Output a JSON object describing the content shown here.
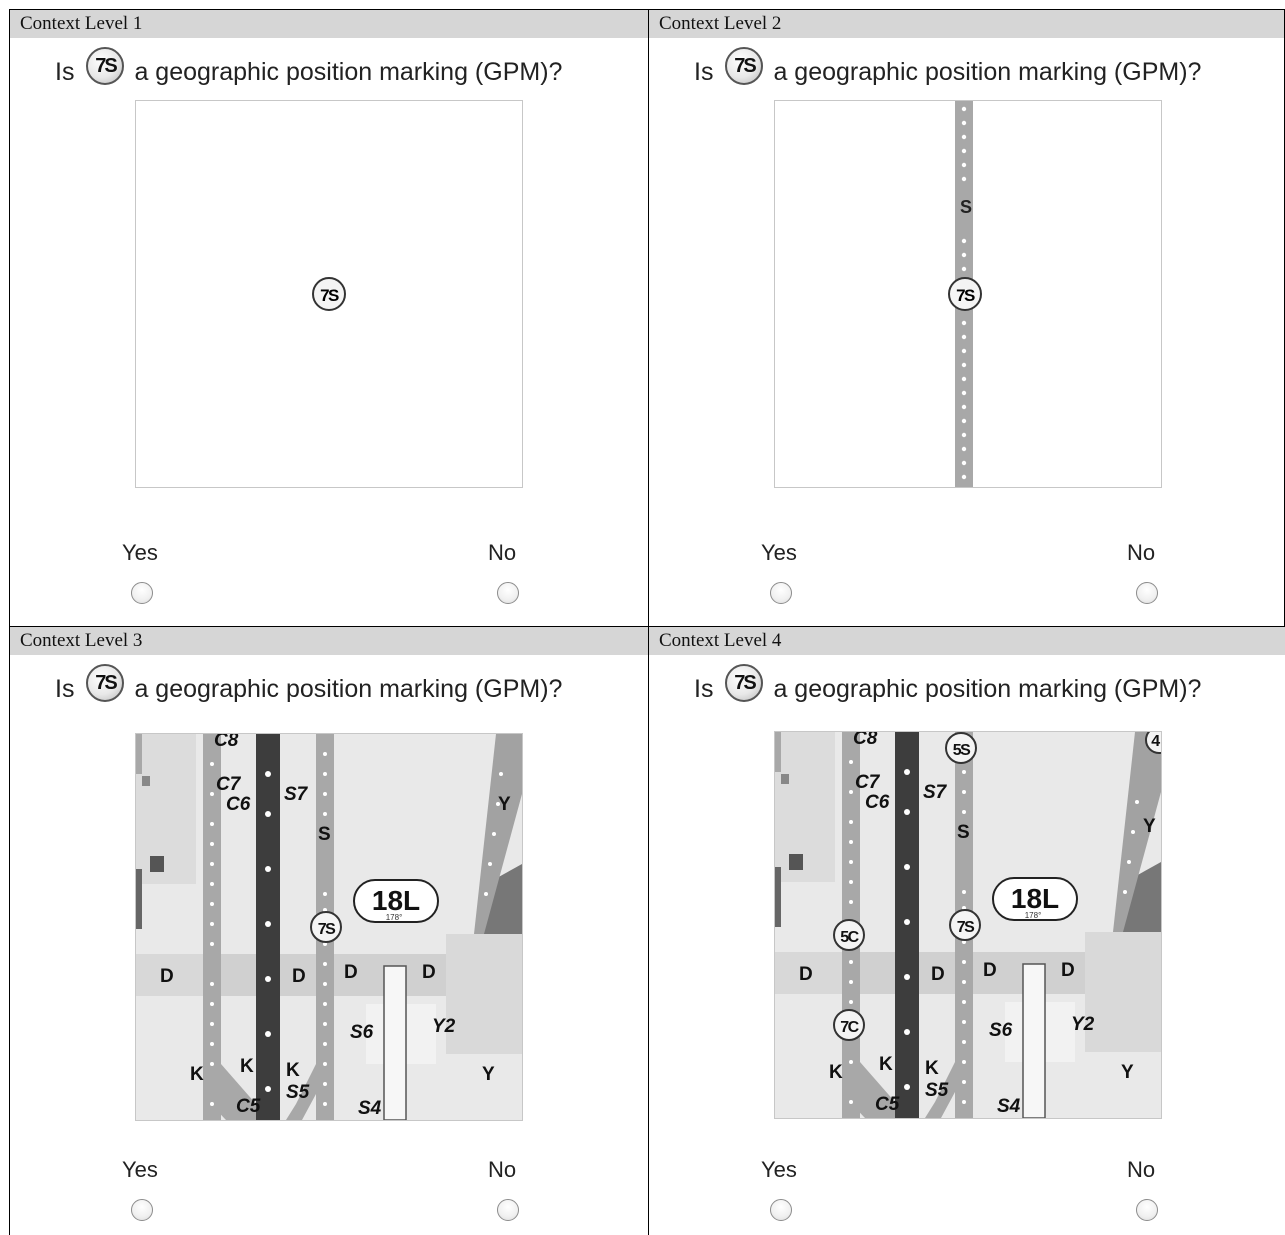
{
  "panels": [
    {
      "header": "Context Level 1",
      "question": {
        "prefix": "Is",
        "marker": "7S",
        "suffix": "a geographic position marking (GPM)?"
      },
      "options": {
        "yes": "Yes",
        "no": "No"
      }
    },
    {
      "header": "Context Level 2",
      "question": {
        "prefix": "Is",
        "marker": "7S",
        "suffix": "a geographic position marking (GPM)?"
      },
      "map_labels": {
        "taxiway": "S",
        "marker": "7S"
      },
      "options": {
        "yes": "Yes",
        "no": "No"
      }
    },
    {
      "header": "Context Level 3",
      "question": {
        "prefix": "Is",
        "marker": "7S",
        "suffix": "a geographic position marking (GPM)?"
      },
      "map_labels": {
        "c8": "C8",
        "c7": "C7",
        "c6": "C6",
        "s7": "S7",
        "s": "S",
        "y_top": "Y",
        "runway": "18L",
        "heading": "178°",
        "marker_7s": "7S",
        "d1": "D",
        "d2": "D",
        "d3": "D",
        "d4": "D",
        "s6": "S6",
        "y2": "Y2",
        "k1": "K",
        "k2": "K",
        "k3": "K",
        "s5": "S5",
        "c5": "C5",
        "s4": "S4",
        "y_bottom": "Y"
      },
      "options": {
        "yes": "Yes",
        "no": "No"
      }
    },
    {
      "header": "Context Level 4",
      "question": {
        "prefix": "Is",
        "marker": "7S",
        "suffix": "a geographic position marking (GPM)?"
      },
      "map_labels": {
        "c8": "C8",
        "c7": "C7",
        "c6": "C6",
        "s7": "S7",
        "s": "S",
        "y_top": "Y",
        "runway": "18L",
        "heading": "178°",
        "marker_7s": "7S",
        "marker_5s": "5S",
        "marker_4": "4",
        "marker_5c": "5C",
        "marker_7c": "7C",
        "d1": "D",
        "d2": "D",
        "d3": "D",
        "d4": "D",
        "s6": "S6",
        "y2": "Y2",
        "k1": "K",
        "k2": "K",
        "k3": "K",
        "s5": "S5",
        "c5": "C5",
        "s4": "S4",
        "y_bottom": "Y"
      },
      "options": {
        "yes": "Yes",
        "no": "No"
      }
    }
  ],
  "colors": {
    "header_bg": "#d6d6d6",
    "taxiway_gray": "#aaaaaa",
    "runway_dark": "#444444",
    "apron_light": "#e6e6e6"
  }
}
